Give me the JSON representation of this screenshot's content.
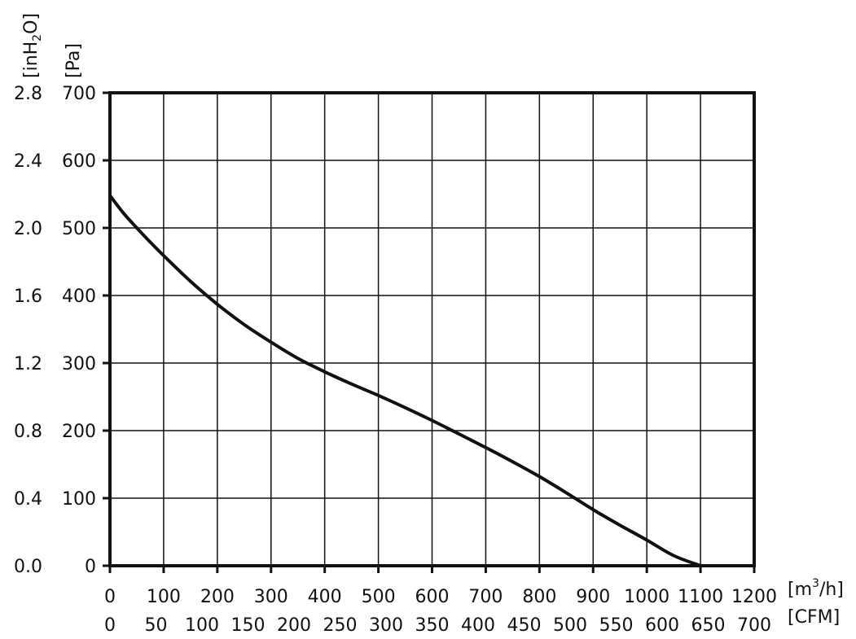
{
  "chart_data": {
    "type": "line",
    "grid": true,
    "x_axis_primary": {
      "label": "[m³/h]",
      "label_main": "[m",
      "label_sup": "3",
      "label_tail": "/h]",
      "range": [
        0,
        1200
      ],
      "ticks": [
        "0",
        "100",
        "200",
        "300",
        "400",
        "500",
        "600",
        "700",
        "800",
        "900",
        "1000",
        "1100",
        "1200"
      ]
    },
    "x_axis_secondary": {
      "label": "[CFM]",
      "range": [
        0,
        700
      ],
      "ticks": [
        "0",
        "50",
        "100",
        "150",
        "200",
        "250",
        "300",
        "350",
        "400",
        "450",
        "500",
        "550",
        "600",
        "650",
        "700"
      ]
    },
    "y_axis_primary": {
      "label": "[Pa]",
      "range": [
        0,
        700
      ],
      "ticks": [
        "0",
        "100",
        "200",
        "300",
        "400",
        "500",
        "600",
        "700"
      ]
    },
    "y_axis_secondary": {
      "label": "[inH₂O]",
      "label_main": "[inH",
      "label_sub": "2",
      "label_tail": "O]",
      "range": [
        0,
        2.8
      ],
      "ticks": [
        "0.0",
        "0.4",
        "0.8",
        "1.2",
        "1.6",
        "2.0",
        "2.4",
        "2.8"
      ]
    },
    "series": [
      {
        "color": "#111111",
        "points": [
          [
            0,
            548
          ],
          [
            25,
            522
          ],
          [
            50,
            500
          ],
          [
            75,
            479
          ],
          [
            100,
            459
          ],
          [
            150,
            421
          ],
          [
            200,
            387
          ],
          [
            250,
            357
          ],
          [
            300,
            331
          ],
          [
            350,
            307
          ],
          [
            400,
            287
          ],
          [
            450,
            269
          ],
          [
            500,
            252
          ],
          [
            550,
            234
          ],
          [
            600,
            215
          ],
          [
            650,
            195
          ],
          [
            700,
            175
          ],
          [
            750,
            154
          ],
          [
            800,
            132
          ],
          [
            850,
            108
          ],
          [
            900,
            83
          ],
          [
            950,
            60
          ],
          [
            1000,
            38
          ],
          [
            1050,
            15
          ],
          [
            1100,
            0
          ]
        ]
      }
    ]
  }
}
